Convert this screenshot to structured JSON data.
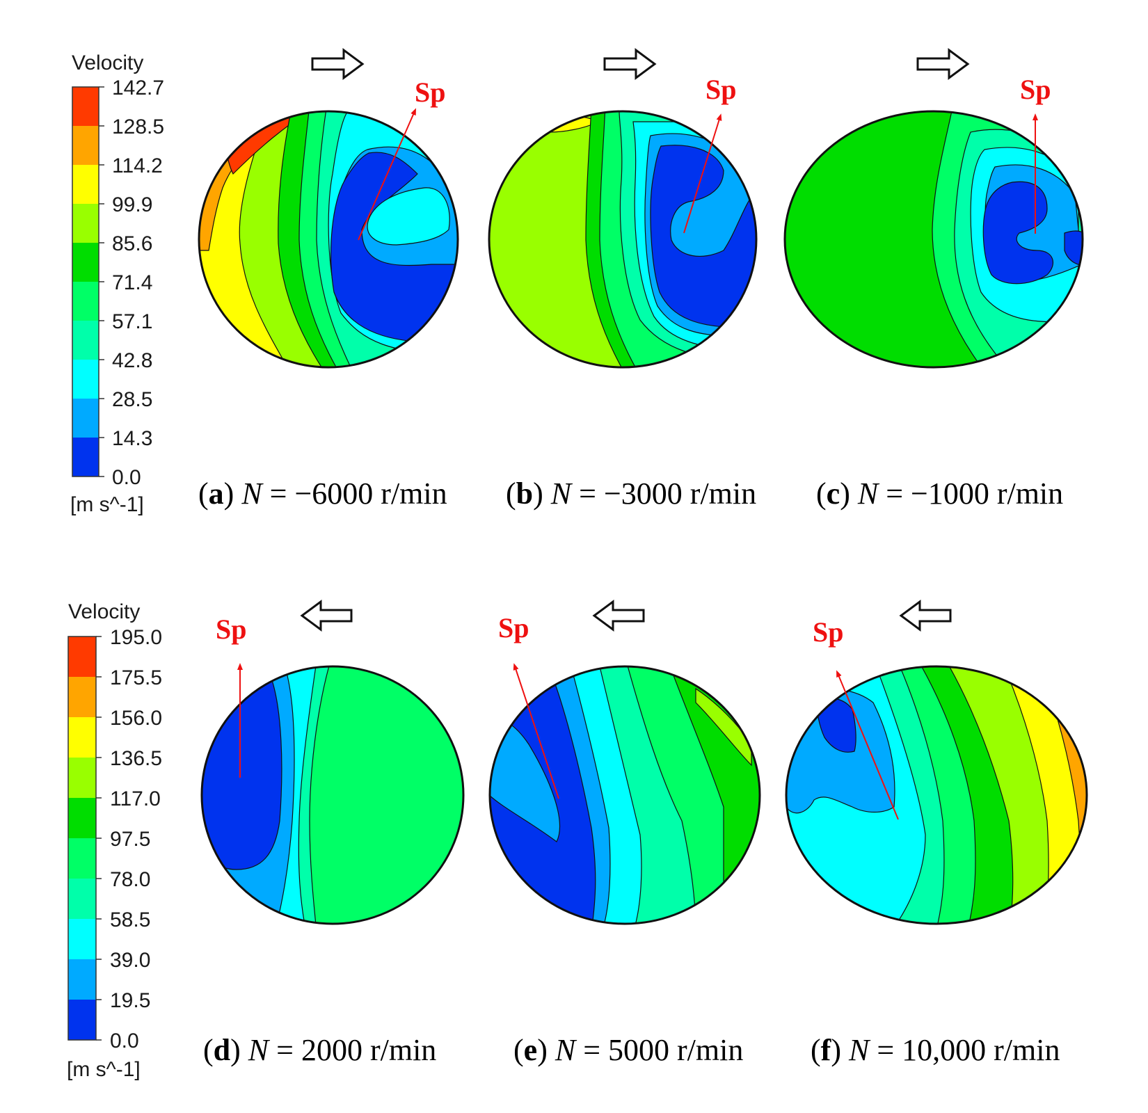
{
  "figure": {
    "legends": [
      {
        "id": "top",
        "title": "Velocity",
        "unit": "[m s^-1]",
        "ticks": [
          "142.7",
          "128.5",
          "114.2",
          "99.9",
          "85.6",
          "71.4",
          "57.1",
          "42.8",
          "28.5",
          "14.3",
          "0.0"
        ]
      },
      {
        "id": "bottom",
        "title": "Velocity",
        "unit": "[m s^-1]",
        "ticks": [
          "195.0",
          "175.5",
          "156.0",
          "136.5",
          "117.0",
          "97.5",
          "78.0",
          "58.5",
          "39.0",
          "19.5",
          "0.0"
        ]
      }
    ],
    "colors": [
      "#ff3a00",
      "#ffa500",
      "#ffff00",
      "#99ff00",
      "#00dd00",
      "#00ff66",
      "#00ffaa",
      "#00ffff",
      "#00aaff",
      "#0055ff",
      "#0033ee"
    ],
    "panels": [
      {
        "id": "a",
        "letter": "a",
        "symbol": "N",
        "eq": " = −6000 r/min",
        "sp": "Sp",
        "flow_direction": "right",
        "speed_rpm": -6000
      },
      {
        "id": "b",
        "letter": "b",
        "symbol": "N",
        "eq": " = −3000 r/min",
        "sp": "Sp",
        "flow_direction": "right",
        "speed_rpm": -3000
      },
      {
        "id": "c",
        "letter": "c",
        "symbol": "N",
        "eq": " = −1000 r/min",
        "sp": "Sp",
        "flow_direction": "right",
        "speed_rpm": -1000
      },
      {
        "id": "d",
        "letter": "d",
        "symbol": "N",
        "eq": " = 2000 r/min",
        "sp": "Sp",
        "flow_direction": "left",
        "speed_rpm": 2000
      },
      {
        "id": "e",
        "letter": "e",
        "symbol": "N",
        "eq": " = 5000 r/min",
        "sp": "Sp",
        "flow_direction": "left",
        "speed_rpm": 5000
      },
      {
        "id": "f",
        "letter": "f",
        "symbol": "N",
        "eq": " = 10,000 r/min",
        "sp": "Sp",
        "flow_direction": "left",
        "speed_rpm": 10000
      }
    ]
  }
}
